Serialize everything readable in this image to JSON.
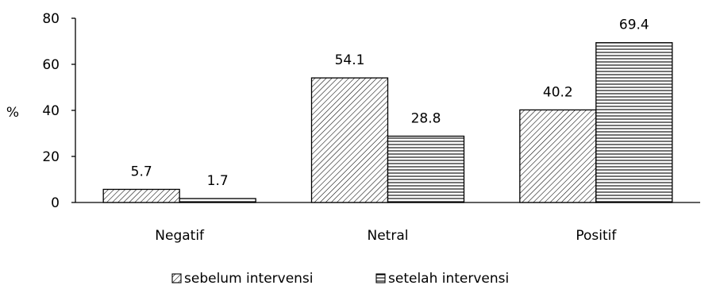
{
  "chart_data": {
    "type": "bar",
    "title": "",
    "xlabel": "",
    "ylabel": "%",
    "ylim": [
      0,
      80
    ],
    "yticks": [
      0,
      20,
      40,
      60,
      80
    ],
    "grid": false,
    "legend_position": "bottom",
    "categories": [
      "Negatif",
      "Netral",
      "Positif"
    ],
    "series": [
      {
        "name": "sebelum intervensi",
        "pattern": "diagonal-hatch",
        "values": [
          5.7,
          54.1,
          40.2
        ],
        "labels": [
          "5.7",
          "54.1",
          "40.2"
        ]
      },
      {
        "name": "setelah intervensi",
        "pattern": "horizontal-lines",
        "values": [
          1.7,
          28.8,
          69.4
        ],
        "labels": [
          "1.7",
          "28.8",
          "69.4"
        ]
      }
    ],
    "colors": {
      "stroke": "#000000",
      "fill": "#ffffff"
    }
  }
}
